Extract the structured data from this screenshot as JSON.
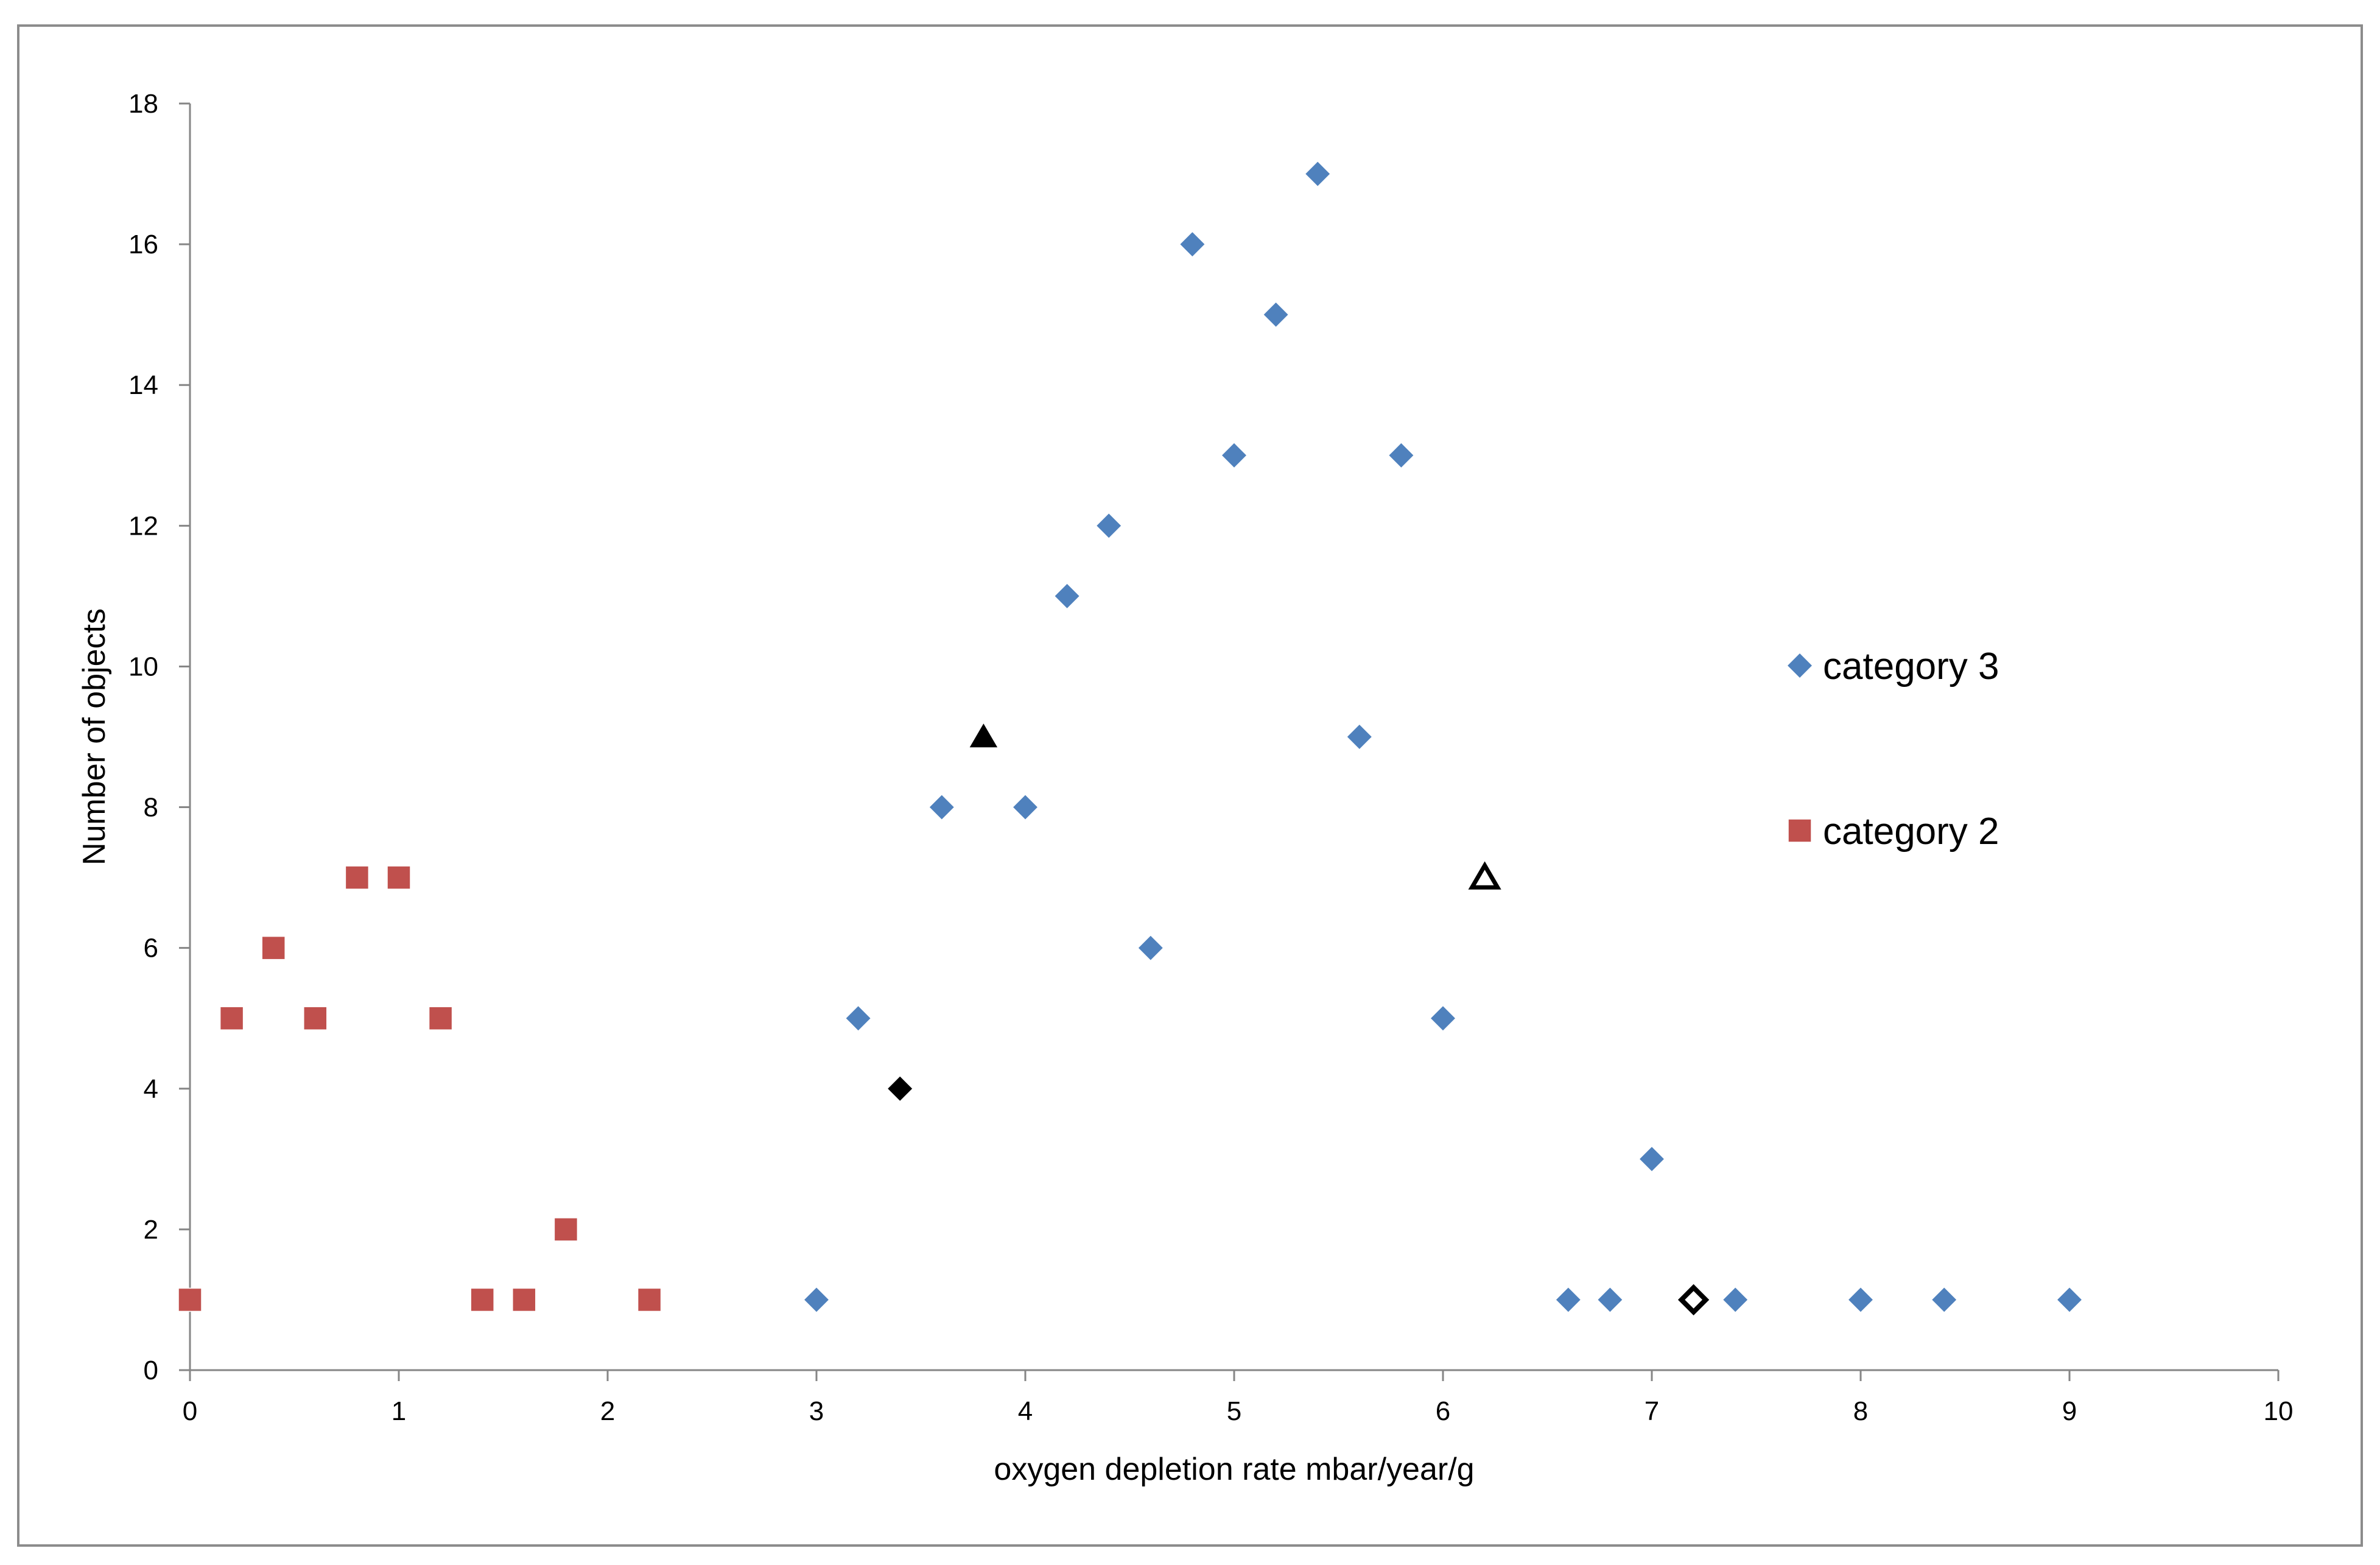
{
  "chart_data": {
    "type": "scatter",
    "title": "",
    "xlabel": "oxygen depletion rate mbar/year/g",
    "ylabel": "Number of objects",
    "xlim": [
      0,
      10
    ],
    "ylim": [
      0,
      18
    ],
    "xticks": [
      0,
      1,
      2,
      3,
      4,
      5,
      6,
      7,
      8,
      9,
      10
    ],
    "yticks": [
      0,
      2,
      4,
      6,
      8,
      10,
      12,
      14,
      16,
      18
    ],
    "grid": false,
    "legend_position": "right",
    "series": [
      {
        "name": "category 3",
        "marker": "diamond",
        "color": "#4F81BD",
        "points": [
          [
            3.0,
            1
          ],
          [
            3.2,
            5
          ],
          [
            3.6,
            8
          ],
          [
            4.0,
            8
          ],
          [
            4.2,
            11
          ],
          [
            4.4,
            12
          ],
          [
            4.6,
            6
          ],
          [
            4.8,
            16
          ],
          [
            5.0,
            13
          ],
          [
            5.2,
            15
          ],
          [
            5.4,
            17
          ],
          [
            5.6,
            9
          ],
          [
            5.8,
            13
          ],
          [
            6.0,
            5
          ],
          [
            6.6,
            1
          ],
          [
            6.8,
            1
          ],
          [
            7.0,
            3
          ],
          [
            7.4,
            1
          ],
          [
            8.0,
            1
          ],
          [
            8.4,
            1
          ],
          [
            9.0,
            1
          ]
        ]
      },
      {
        "name": "category 2",
        "marker": "square",
        "color": "#C0504D",
        "points": [
          [
            0.0,
            1
          ],
          [
            0.2,
            5
          ],
          [
            0.4,
            6
          ],
          [
            0.6,
            5
          ],
          [
            0.8,
            7
          ],
          [
            1.0,
            7
          ],
          [
            1.2,
            5
          ],
          [
            1.4,
            1
          ],
          [
            1.6,
            1
          ],
          [
            1.8,
            2
          ],
          [
            2.2,
            1
          ]
        ]
      }
    ],
    "extra_markers": [
      {
        "x": 3.4,
        "y": 4,
        "marker": "diamond",
        "style": "filled",
        "color": "#000000"
      },
      {
        "x": 3.8,
        "y": 9,
        "marker": "triangle",
        "style": "filled",
        "color": "#000000"
      },
      {
        "x": 6.2,
        "y": 7,
        "marker": "triangle",
        "style": "hollow",
        "color": "#000000"
      },
      {
        "x": 7.2,
        "y": 1,
        "marker": "diamond",
        "style": "hollow",
        "color": "#000000"
      }
    ]
  }
}
